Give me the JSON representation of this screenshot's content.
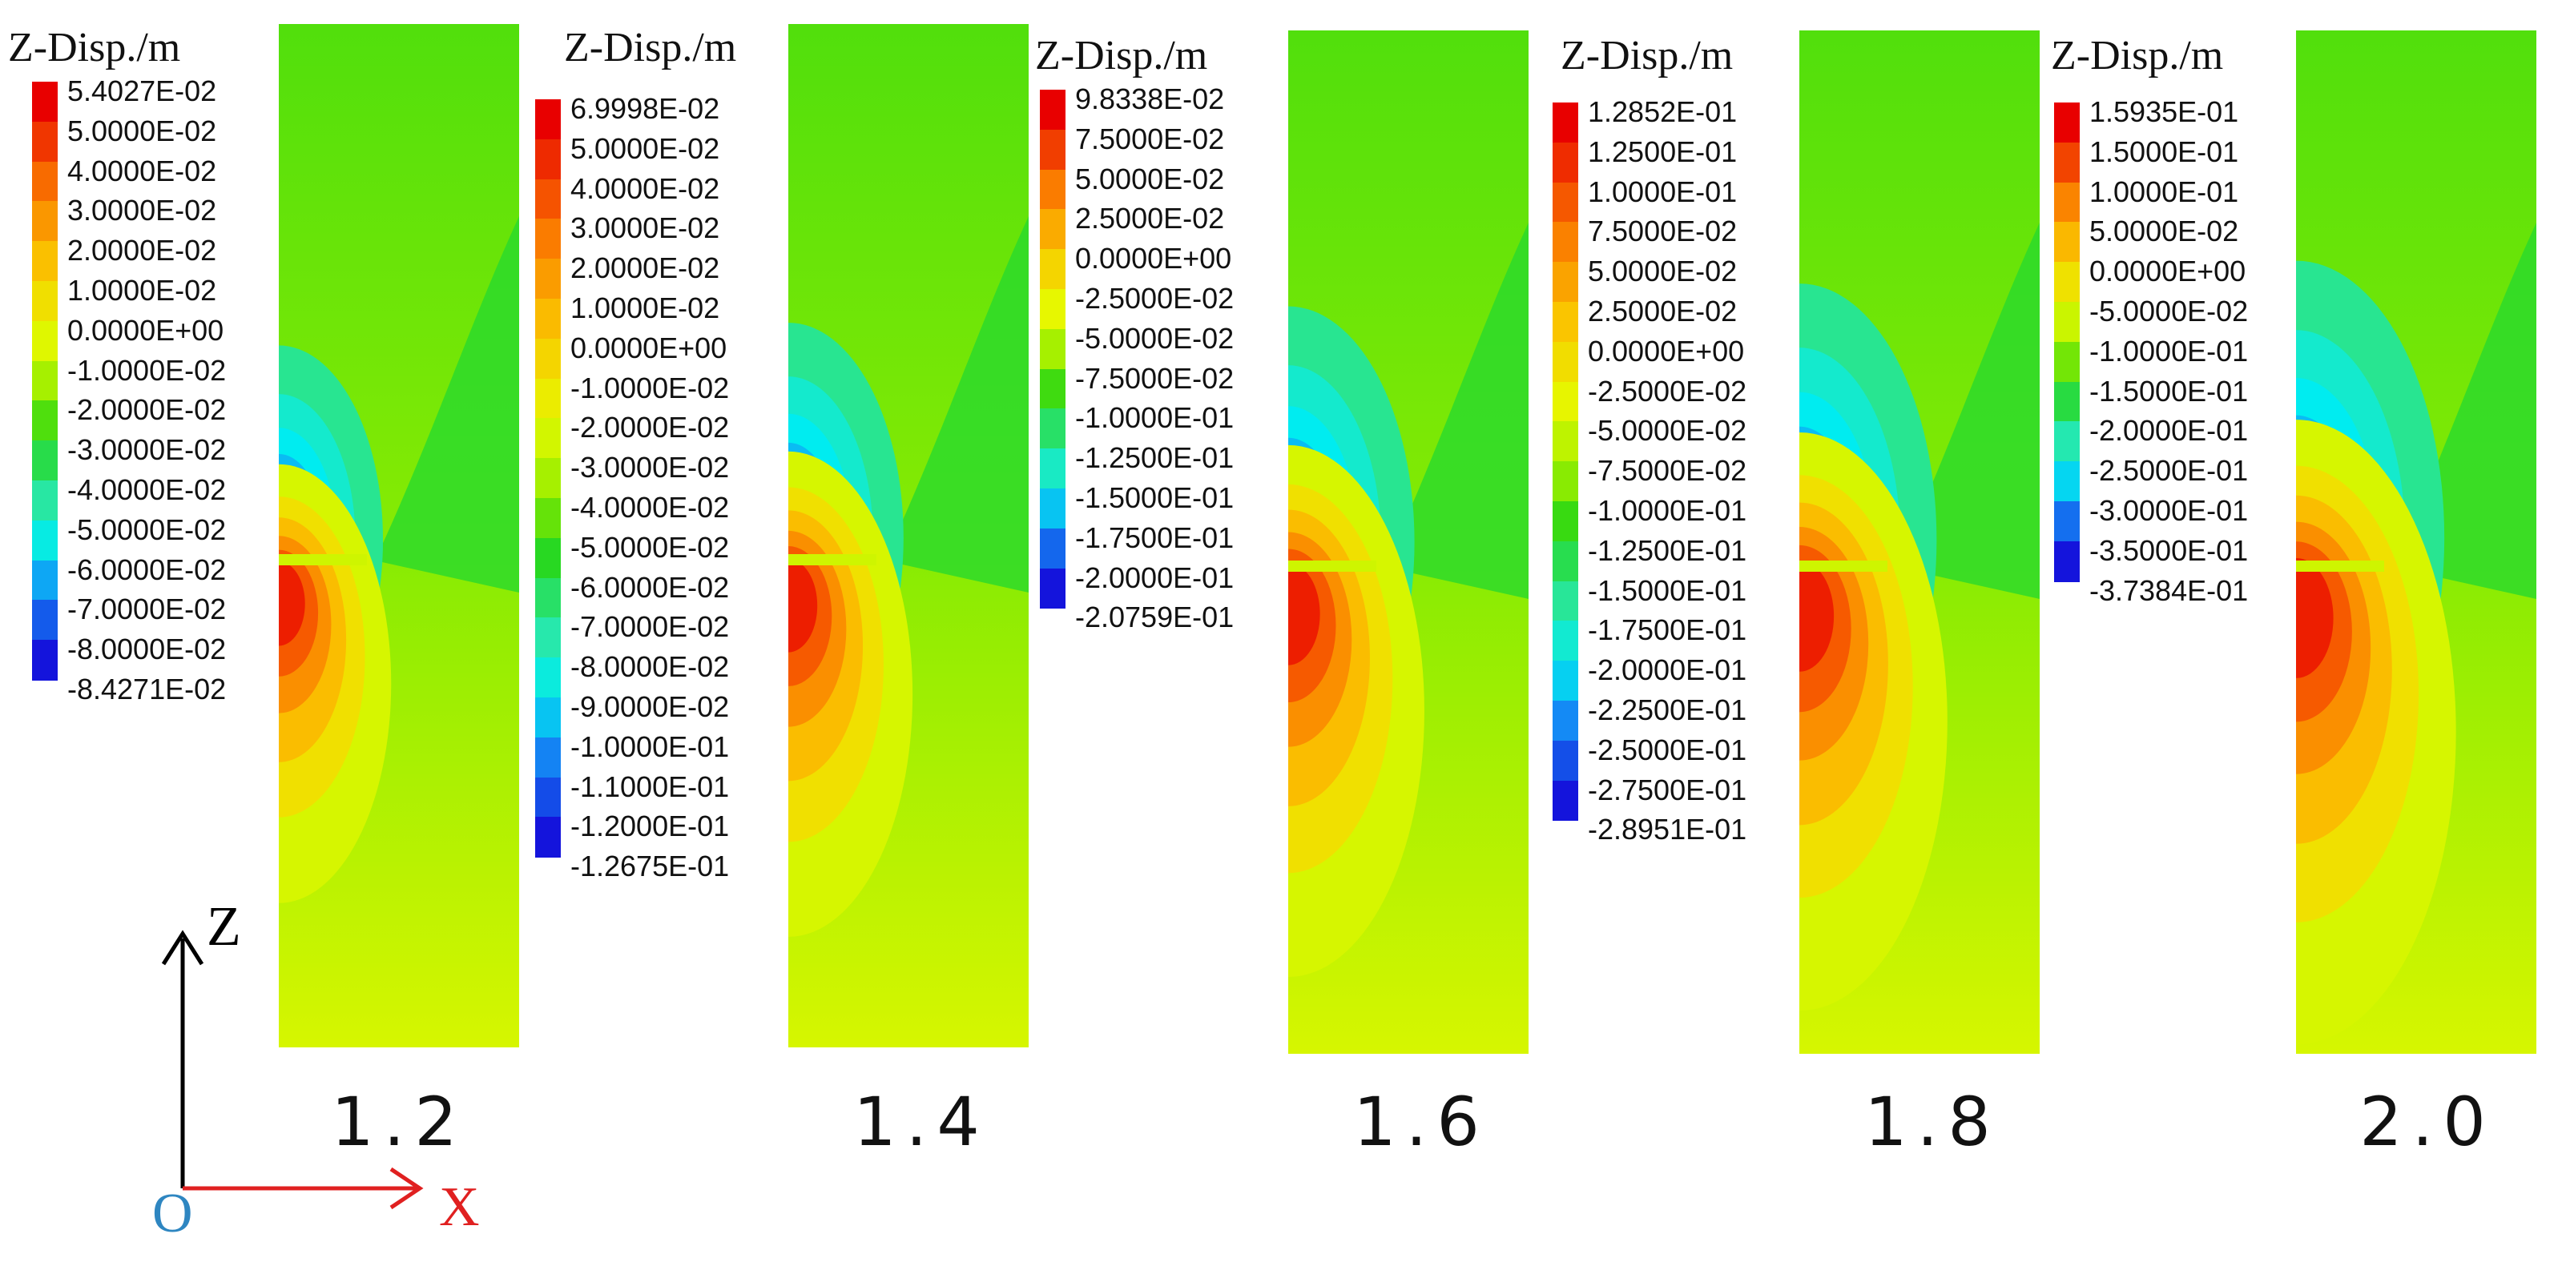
{
  "legend_title": "Z-Disp./m",
  "coord": {
    "z": "Z",
    "x": "X",
    "o": "O",
    "x_color": "#e02020",
    "o_color": "#2e86c1",
    "z_color": "#000000"
  },
  "panels": [
    {
      "label": "1.2",
      "ticks": [
        "5.4027E-02",
        "5.0000E-02",
        "4.0000E-02",
        "3.0000E-02",
        "2.0000E-02",
        "1.0000E-02",
        "0.0000E+00",
        "-1.0000E-02",
        "-2.0000E-02",
        "-3.0000E-02",
        "-4.0000E-02",
        "-5.0000E-02",
        "-6.0000E-02",
        "-7.0000E-02",
        "-8.0000E-02",
        "-8.4271E-02"
      ]
    },
    {
      "label": "1.4",
      "ticks": [
        "6.9998E-02",
        "5.0000E-02",
        "4.0000E-02",
        "3.0000E-02",
        "2.0000E-02",
        "1.0000E-02",
        "0.0000E+00",
        "-1.0000E-02",
        "-2.0000E-02",
        "-3.0000E-02",
        "-4.0000E-02",
        "-5.0000E-02",
        "-6.0000E-02",
        "-7.0000E-02",
        "-8.0000E-02",
        "-9.0000E-02",
        "-1.0000E-01",
        "-1.1000E-01",
        "-1.2000E-01",
        "-1.2675E-01"
      ]
    },
    {
      "label": "1.6",
      "ticks": [
        "9.8338E-02",
        "7.5000E-02",
        "5.0000E-02",
        "2.5000E-02",
        "0.0000E+00",
        "-2.5000E-02",
        "-5.0000E-02",
        "-7.5000E-02",
        "-1.0000E-01",
        "-1.2500E-01",
        "-1.5000E-01",
        "-1.7500E-01",
        "-2.0000E-01",
        "-2.0759E-01"
      ]
    },
    {
      "label": "1.8",
      "ticks": [
        "1.2852E-01",
        "1.2500E-01",
        "1.0000E-01",
        "7.5000E-02",
        "5.0000E-02",
        "2.5000E-02",
        "0.0000E+00",
        "-2.5000E-02",
        "-5.0000E-02",
        "-7.5000E-02",
        "-1.0000E-01",
        "-1.2500E-01",
        "-1.5000E-01",
        "-1.7500E-01",
        "-2.0000E-01",
        "-2.2500E-01",
        "-2.5000E-01",
        "-2.7500E-01",
        "-2.8951E-01"
      ]
    },
    {
      "label": "2.0",
      "ticks": [
        "1.5935E-01",
        "1.5000E-01",
        "1.0000E-01",
        "5.0000E-02",
        "0.0000E+00",
        "-5.0000E-02",
        "-1.0000E-01",
        "-1.5000E-01",
        "-2.0000E-01",
        "-2.5000E-01",
        "-3.0000E-01",
        "-3.5000E-01",
        "-3.7384E-01"
      ]
    }
  ]
}
